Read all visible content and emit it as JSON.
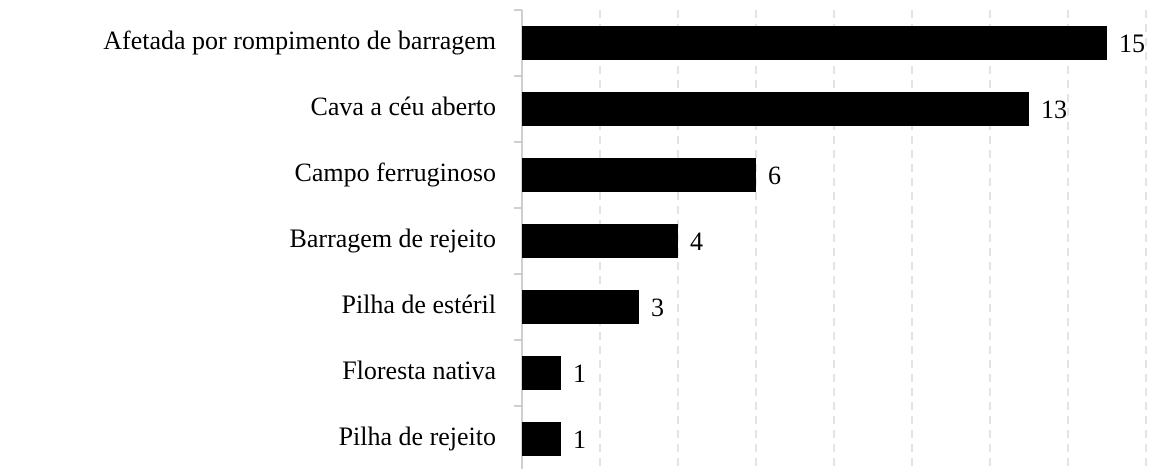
{
  "chart_data": {
    "type": "barh",
    "categories": [
      "Afetada por rompimento de barragem",
      "Cava a céu aberto",
      "Campo ferruginoso",
      "Barragem de rejeito",
      "Pilha de estéril",
      "Floresta nativa",
      "Pilha de rejeito"
    ],
    "values": [
      15,
      13,
      6,
      4,
      3,
      1,
      1
    ],
    "color": "#000000",
    "xlim": [
      0,
      16
    ],
    "xticks": [
      0,
      2,
      4,
      6,
      8,
      10,
      12,
      14,
      16
    ],
    "grid": true
  }
}
